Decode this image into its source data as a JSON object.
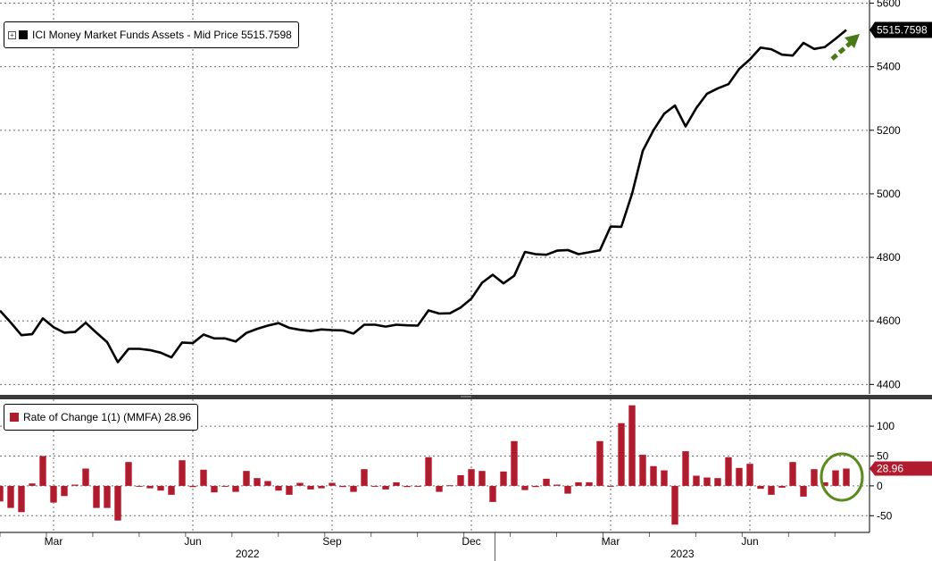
{
  "colors": {
    "line": "#000000",
    "bar": "#b01c2e",
    "arrow": "#4a7a18",
    "circle": "#5c8a1e",
    "grid": "#6e6e6e"
  },
  "legend_top": {
    "icon": "plus-icon",
    "label": "ICI Money Market Funds Assets - Mid Price 5515.7598"
  },
  "legend_bottom": {
    "label": "Rate of Change 1(1) (MMFA) 28.96"
  },
  "chart_data": [
    {
      "type": "line",
      "title": "",
      "series": [
        {
          "name": "ICI Money Market Funds Assets - Mid Price",
          "values": [
            4632,
            4595,
            4555,
            4558,
            4608,
            4580,
            4563,
            4565,
            4594,
            4563,
            4533,
            4470,
            4512,
            4512,
            4508,
            4500,
            4485,
            4532,
            4530,
            4557,
            4545,
            4545,
            4535,
            4562,
            4575,
            4585,
            4593,
            4578,
            4572,
            4568,
            4573,
            4571,
            4570,
            4560,
            4588,
            4588,
            4582,
            4588,
            4586,
            4585,
            4633,
            4623,
            4624,
            4642,
            4670,
            4720,
            4745,
            4718,
            4742,
            4817,
            4810,
            4808,
            4821,
            4823,
            4810,
            4816,
            4822,
            4897,
            4896,
            5000,
            5135,
            5200,
            5252,
            5278,
            5212,
            5270,
            5315,
            5332,
            5345,
            5393,
            5423,
            5460,
            5455,
            5438,
            5435,
            5475,
            5456,
            5462,
            5488,
            5515.7598
          ]
        }
      ],
      "ylim": [
        4370,
        5610
      ],
      "yticks": [
        4400,
        4600,
        4800,
        5000,
        5200,
        5400,
        5600
      ],
      "last_value_label": "5515.7598",
      "arrow_icon": "up-right-arrow-icon"
    },
    {
      "type": "bar",
      "title": "",
      "series": [
        {
          "name": "Rate of Change 1(1) (MMFA)",
          "values": [
            -26,
            -37,
            -44,
            4,
            50,
            -28,
            -17,
            2,
            29,
            -37,
            -37,
            -58,
            40,
            0,
            -4,
            -8,
            -15,
            43,
            -2,
            27,
            -11,
            0,
            -10,
            25,
            13,
            8,
            -8,
            -15,
            5,
            -6,
            -4,
            5,
            -2,
            -10,
            28,
            0,
            -6,
            6,
            -2,
            -1,
            48,
            -10,
            1,
            18,
            28,
            25,
            -27,
            24,
            75,
            -7,
            -2,
            12,
            2,
            -13,
            6,
            6,
            75,
            -1,
            105,
            135,
            52,
            33,
            26,
            -65,
            58,
            17,
            14,
            13,
            48,
            30,
            37,
            -5,
            -15,
            -3,
            40,
            -18,
            28,
            6,
            26,
            28.96
          ]
        }
      ],
      "ylim": [
        -78,
        145
      ],
      "yticks": [
        -50,
        0,
        50,
        100
      ],
      "last_value_label": "28.96",
      "circle_icon": "highlight-circle-icon"
    }
  ],
  "x_axis": {
    "month_labels": [
      {
        "label": "Mar",
        "i": 5
      },
      {
        "label": "Jun",
        "i": 18
      },
      {
        "label": "Sep",
        "i": 31
      },
      {
        "label": "Dec",
        "i": 44
      },
      {
        "label": "Mar",
        "i": 57
      },
      {
        "label": "Jun",
        "i": 70
      }
    ],
    "year_labels": [
      "2022",
      "2023"
    ]
  }
}
